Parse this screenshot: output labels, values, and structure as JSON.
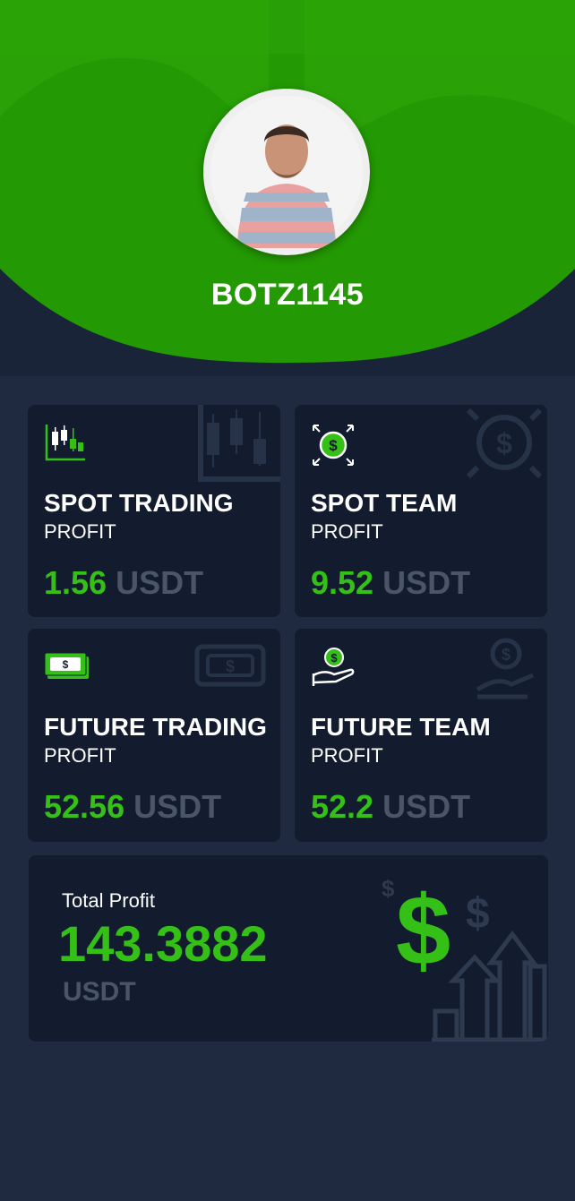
{
  "profile": {
    "username": "BOTZ1145"
  },
  "cards": [
    {
      "title": "SPOT TRADING",
      "subtitle": "PROFIT",
      "value": "1.56",
      "unit": "USDT",
      "icon": "candlestick-chart-icon"
    },
    {
      "title": "SPOT TEAM",
      "subtitle": "PROFIT",
      "value": "9.52",
      "unit": "USDT",
      "icon": "dollar-coin-expand-icon"
    },
    {
      "title": "FUTURE TRADING",
      "subtitle": "PROFIT",
      "value": "52.56",
      "unit": "USDT",
      "icon": "banknote-icon"
    },
    {
      "title": "FUTURE TEAM",
      "subtitle": "PROFIT",
      "value": "52.2",
      "unit": "USDT",
      "icon": "hand-coin-icon"
    }
  ],
  "total": {
    "label": "Total Profit",
    "value": "143.3882",
    "unit": "USDT",
    "symbol": "$",
    "icon": "growth-bar-chart-icon"
  },
  "colors": {
    "accent": "#34c017",
    "header_green": "#239a03",
    "background": "#1f2a41",
    "card": "#121c2e",
    "muted": "#4a5569"
  }
}
